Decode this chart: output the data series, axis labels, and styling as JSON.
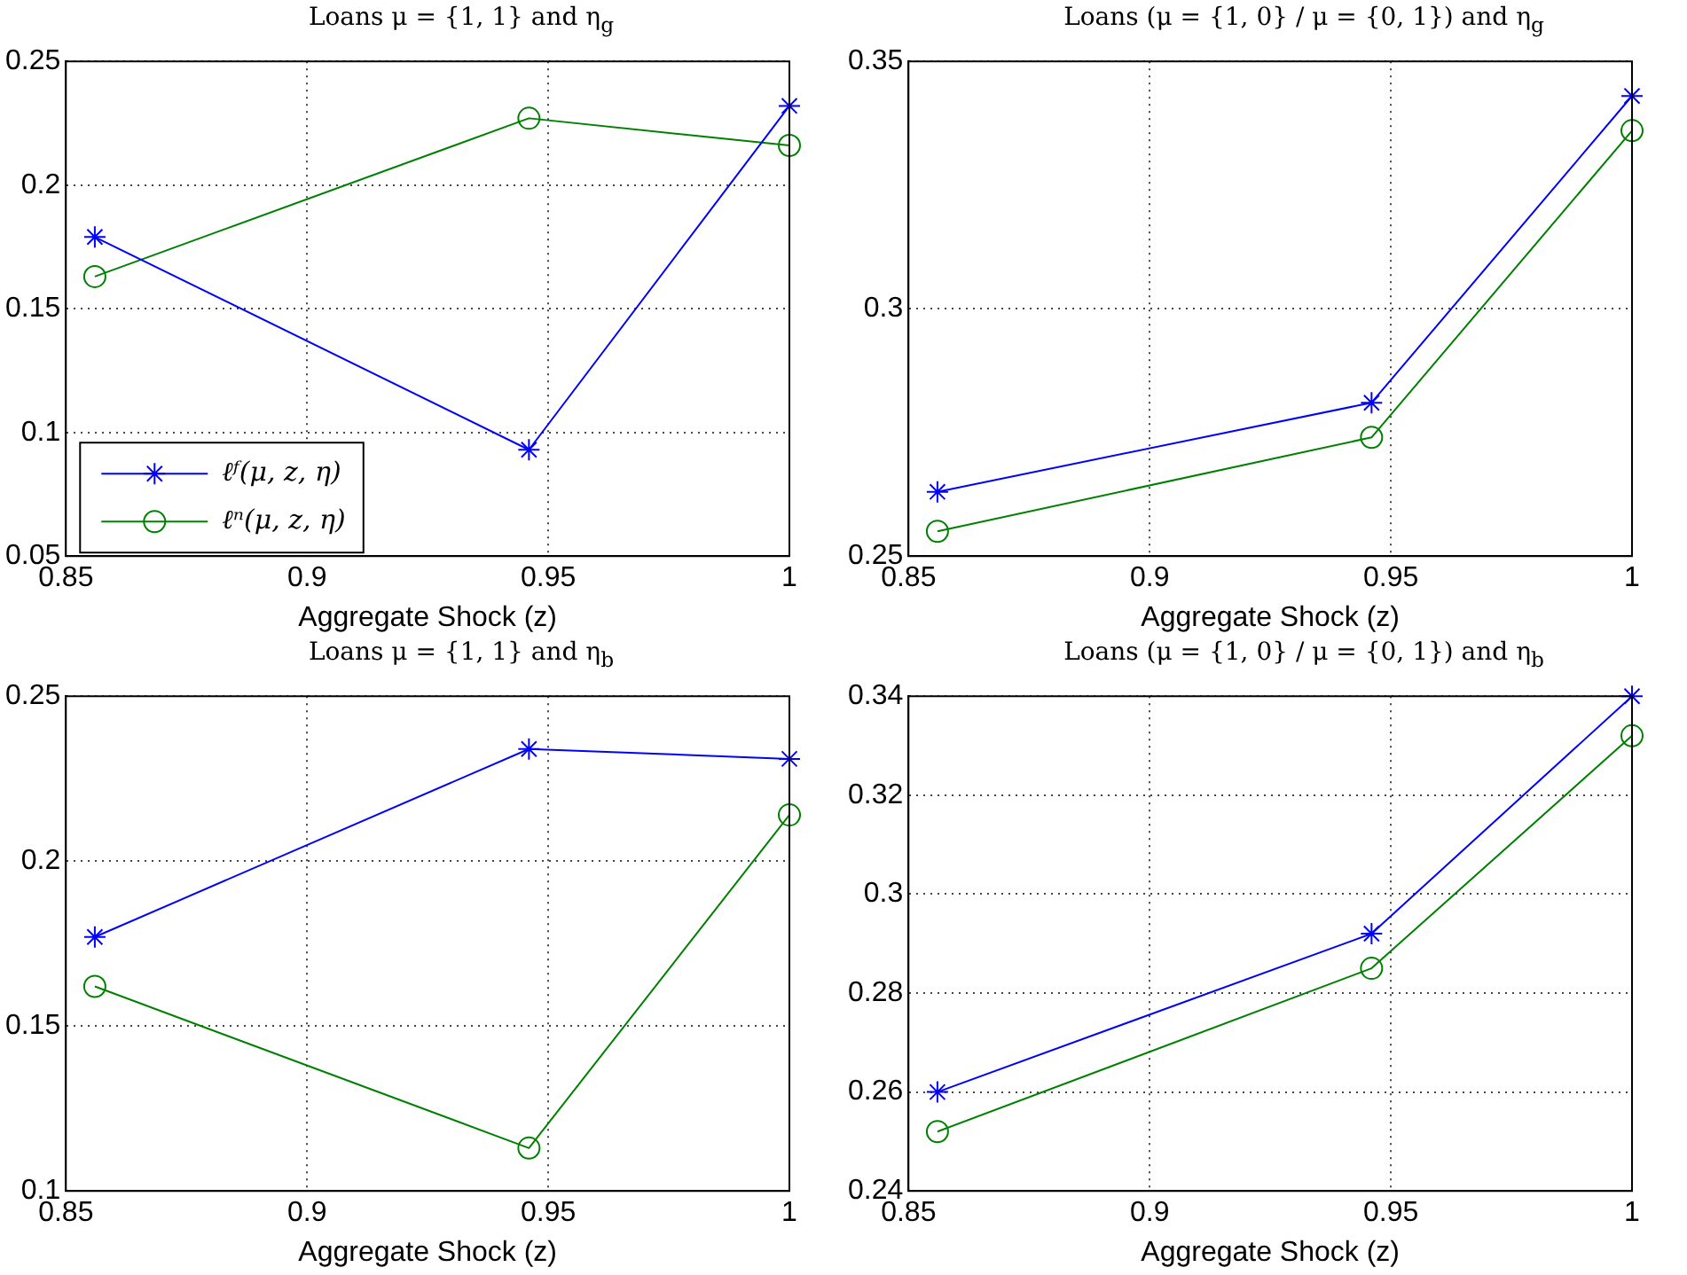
{
  "chart_data": [
    {
      "type": "line",
      "title": "Loans μ = {1, 1} and η$_{g}$",
      "xlabel": "Aggregate Shock (z)",
      "x": [
        0.856,
        0.946,
        1.0
      ],
      "xlim": [
        0.85,
        1
      ],
      "xticks": [
        0.85,
        0.9,
        0.95,
        1
      ],
      "ylim": [
        0.05,
        0.25
      ],
      "yticks": [
        0.05,
        0.1,
        0.15,
        0.2,
        0.25
      ],
      "grid": true,
      "legend": "bottom left",
      "series": [
        {
          "name": "ℓᶠ(μ, z, η)",
          "color": "#0000ff",
          "marker": "cross",
          "values": [
            0.179,
            0.093,
            0.232
          ]
        },
        {
          "name": "ℓⁿ(μ, z, η)",
          "color": "#008000",
          "marker": "circle",
          "values": [
            0.163,
            0.227,
            0.216
          ]
        }
      ]
    },
    {
      "type": "line",
      "title": "Loans (μ = {1, 0} / μ = {0, 1}) and η$_{g}$",
      "xlabel": "Aggregate Shock (z)",
      "x": [
        0.856,
        0.946,
        1.0
      ],
      "xlim": [
        0.85,
        1
      ],
      "xticks": [
        0.85,
        0.9,
        0.95,
        1
      ],
      "ylim": [
        0.25,
        0.35
      ],
      "yticks": [
        0.25,
        0.3,
        0.35
      ],
      "grid": true,
      "series": [
        {
          "color": "#0000ff",
          "marker": "cross",
          "values": [
            0.263,
            0.281,
            0.343
          ]
        },
        {
          "color": "#008000",
          "marker": "circle",
          "values": [
            0.255,
            0.274,
            0.336
          ]
        }
      ]
    },
    {
      "type": "line",
      "title": "Loans μ = {1, 1} and η$_{b}$",
      "xlabel": "Aggregate Shock (z)",
      "x": [
        0.856,
        0.946,
        1.0
      ],
      "xlim": [
        0.85,
        1
      ],
      "xticks": [
        0.85,
        0.9,
        0.95,
        1
      ],
      "ylim": [
        0.1,
        0.25
      ],
      "yticks": [
        0.1,
        0.15,
        0.2,
        0.25
      ],
      "grid": true,
      "series": [
        {
          "color": "#0000ff",
          "marker": "cross",
          "values": [
            0.177,
            0.234,
            0.231
          ]
        },
        {
          "color": "#008000",
          "marker": "circle",
          "values": [
            0.162,
            0.113,
            0.214
          ]
        }
      ]
    },
    {
      "type": "line",
      "title": "Loans (μ = {1, 0} / μ = {0, 1}) and η$_{b}$",
      "xlabel": "Aggregate Shock (z)",
      "x": [
        0.856,
        0.946,
        1.0
      ],
      "xlim": [
        0.85,
        1
      ],
      "xticks": [
        0.85,
        0.9,
        0.95,
        1
      ],
      "ylim": [
        0.24,
        0.34
      ],
      "yticks": [
        0.24,
        0.26,
        0.28,
        0.3,
        0.32,
        0.34
      ],
      "grid": true,
      "series": [
        {
          "color": "#0000ff",
          "marker": "cross",
          "values": [
            0.26,
            0.292,
            0.34
          ]
        },
        {
          "color": "#008000",
          "marker": "circle",
          "values": [
            0.252,
            0.285,
            0.332
          ]
        }
      ]
    }
  ]
}
